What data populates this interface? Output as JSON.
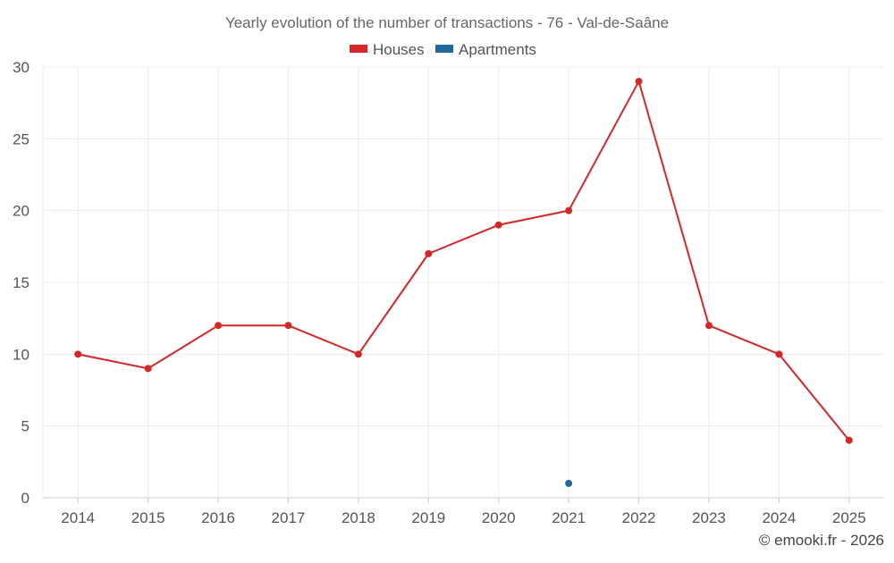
{
  "chart_data": {
    "type": "line",
    "title": "Yearly evolution of the number of transactions - 76 - Val-de-Saâne",
    "categories": [
      "2014",
      "2015",
      "2016",
      "2017",
      "2018",
      "2019",
      "2020",
      "2021",
      "2022",
      "2023",
      "2024",
      "2025"
    ],
    "series": [
      {
        "name": "Houses",
        "color": "#d62728",
        "values": [
          10,
          9,
          12,
          12,
          10,
          17,
          19,
          20,
          29,
          12,
          10,
          4
        ]
      },
      {
        "name": "Apartments",
        "color": "#1f6a9a",
        "values": [
          null,
          null,
          null,
          null,
          null,
          null,
          null,
          1,
          null,
          null,
          null,
          null
        ]
      }
    ],
    "ylim": [
      0,
      30
    ],
    "yticks": [
      0,
      5,
      10,
      15,
      20,
      25,
      30
    ],
    "xlabel": "",
    "ylabel": "",
    "grid": true,
    "legend": "top-center"
  },
  "footer": {
    "copyright": "© emooki.fr - 2026"
  }
}
